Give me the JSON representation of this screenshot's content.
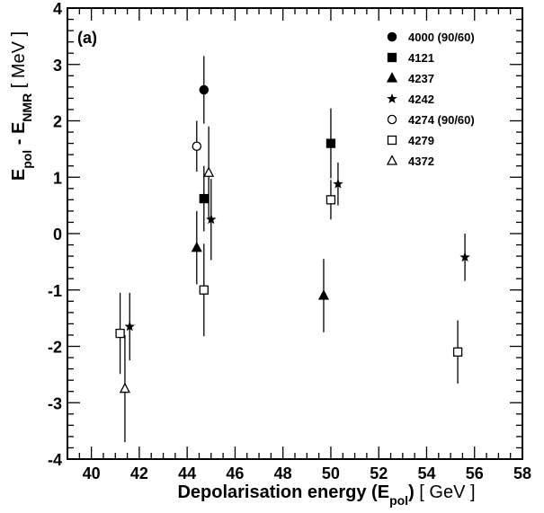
{
  "chart_data": {
    "type": "scatter",
    "panel_label": "(a)",
    "xlabel": {
      "main": "Depolarisation energy (E",
      "sub": "pol",
      "close": ")",
      "unit": "[ GeV ]"
    },
    "ylabel": {
      "main": "E",
      "sub1": "pol",
      "mid": " - E",
      "sub2": "NMR",
      "unit": "[ MeV ]"
    },
    "xlim": [
      39,
      58
    ],
    "ylim": [
      -4,
      4
    ],
    "x_ticks": [
      "40",
      "42",
      "44",
      "46",
      "48",
      "50",
      "52",
      "54",
      "56",
      "58"
    ],
    "y_ticks": [
      "-4",
      "-3",
      "-2",
      "-1",
      "0",
      "1",
      "2",
      "3",
      "4"
    ],
    "grid": false,
    "legend_position": "top-right",
    "series": [
      {
        "name": "4000 (90/60)",
        "marker": "filled-circle",
        "points": [
          {
            "x": 44.7,
            "y": 2.55,
            "err": 0.6
          }
        ]
      },
      {
        "name": "4121",
        "marker": "filled-square",
        "points": [
          {
            "x": 44.7,
            "y": 0.62,
            "err": 0.58
          },
          {
            "x": 50.0,
            "y": 1.6,
            "err": 0.62
          }
        ]
      },
      {
        "name": "4237",
        "marker": "filled-triangle",
        "points": [
          {
            "x": 44.4,
            "y": -0.25,
            "err": 0.65
          },
          {
            "x": 49.7,
            "y": -1.1,
            "err": 0.65
          }
        ]
      },
      {
        "name": "4242",
        "marker": "star",
        "points": [
          {
            "x": 41.6,
            "y": -1.65,
            "err": 0.6
          },
          {
            "x": 45.0,
            "y": 0.25,
            "err": 0.72
          },
          {
            "x": 50.3,
            "y": 0.88,
            "err": 0.38
          },
          {
            "x": 55.6,
            "y": -0.42,
            "err": 0.42
          }
        ]
      },
      {
        "name": "4274 (90/60)",
        "marker": "open-circle",
        "points": [
          {
            "x": 44.4,
            "y": 1.55,
            "err": 0.45
          }
        ]
      },
      {
        "name": "4279",
        "marker": "open-square",
        "points": [
          {
            "x": 41.2,
            "y": -1.77,
            "err": 0.72
          },
          {
            "x": 44.7,
            "y": -1.0,
            "err": 0.82
          },
          {
            "x": 50.0,
            "y": 0.6,
            "err": 0.35
          },
          {
            "x": 55.3,
            "y": -2.1,
            "err": 0.56
          }
        ]
      },
      {
        "name": "4372",
        "marker": "open-triangle",
        "points": [
          {
            "x": 41.4,
            "y": -2.75,
            "err": 0.95
          },
          {
            "x": 44.9,
            "y": 1.08,
            "err": 0.82
          }
        ]
      }
    ]
  }
}
